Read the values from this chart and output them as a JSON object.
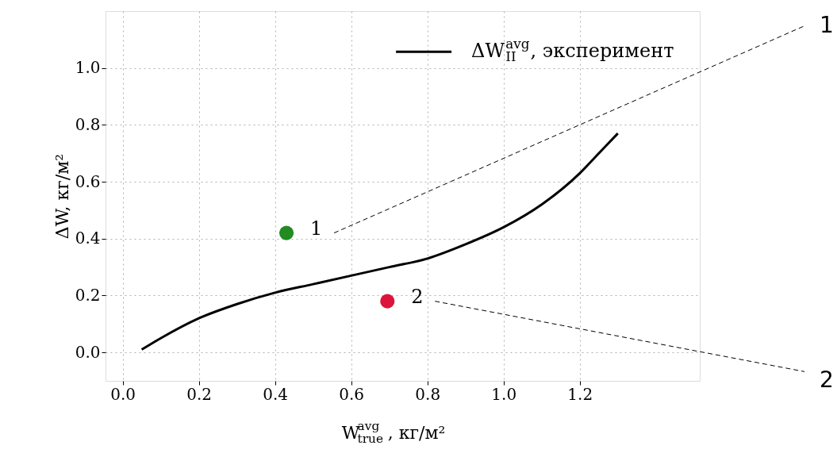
{
  "chart_data": {
    "type": "line",
    "xlabel": "W$_{true}$$^{avg}$, кг/м²",
    "ylabel": "ΔW, кг/м²",
    "xlim": [
      -0.045,
      1.515
    ],
    "ylim": [
      -0.1,
      1.2
    ],
    "xticks": [
      {
        "value": 0,
        "label": "0.0"
      },
      {
        "value": 0.2,
        "label": "0.2"
      },
      {
        "value": 0.4,
        "label": "0.4"
      },
      {
        "value": 0.6,
        "label": "0.6"
      },
      {
        "value": 0.8,
        "label": "0.8"
      },
      {
        "value": 1,
        "label": "1.0"
      },
      {
        "value": 1.2,
        "label": "1.2"
      }
    ],
    "yticks": [
      {
        "value": 0,
        "label": "0.0"
      },
      {
        "value": 0.2,
        "label": "0.2"
      },
      {
        "value": 0.4,
        "label": "0.4"
      },
      {
        "value": 0.6,
        "label": "0.6"
      },
      {
        "value": 0.8,
        "label": "0.8"
      },
      {
        "value": 1,
        "label": "1.0"
      }
    ],
    "grid": true,
    "legend": "top right",
    "series": [
      {
        "name": "ΔW$_{II}$$^{avg}$, эксперимент",
        "color": "#000000",
        "x": [
          0.05,
          0.1,
          0.2,
          0.3,
          0.4,
          0.5,
          0.6,
          0.7,
          0.8,
          0.9,
          1.0,
          1.1,
          1.2,
          1.25,
          1.3
        ],
        "values": [
          0.01,
          0.05,
          0.12,
          0.17,
          0.21,
          0.24,
          0.27,
          0.3,
          0.33,
          0.38,
          0.44,
          0.52,
          0.63,
          0.7,
          0.77
        ]
      },
      {
        "type": "scatter",
        "color": "#228b22",
        "x": [
          0.43
        ],
        "values": [
          0.42
        ]
      },
      {
        "type": "scatter",
        "color": "#dc143c",
        "x": [
          0.695
        ],
        "values": [
          0.18
        ]
      }
    ],
    "annotations": [
      {
        "text": "1",
        "x": 0.43,
        "y": 0.42
      },
      {
        "text": "2",
        "x": 0.695,
        "y": 0.18
      },
      "1",
      "2"
    ]
  }
}
